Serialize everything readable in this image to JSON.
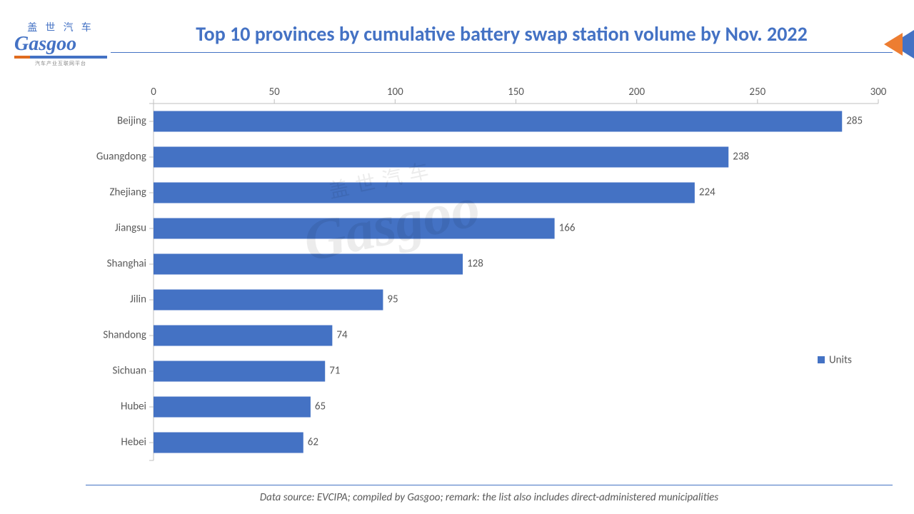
{
  "logo": {
    "cn": "盖 世 汽 车",
    "en": "Gasgoo",
    "sub": "汽车产业互联网平台"
  },
  "title": "Top 10 provinces by cumulative battery swap station volume by Nov. 2022",
  "footer": "Data source: EVCIPA; compiled by Gasgoo; remark: the list also includes direct-administered municipalities",
  "watermark": {
    "cn": "盖世汽车",
    "en": "Gasgoo"
  },
  "chart": {
    "type": "bar-horizontal",
    "categories": [
      "Beijing",
      "Guangdong",
      "Zhejiang",
      "Jiangsu",
      "Shanghai",
      "Jilin",
      "Shandong",
      "Sichuan",
      "Hubei",
      "Hebei"
    ],
    "values": [
      285,
      238,
      224,
      166,
      128,
      95,
      74,
      71,
      65,
      62
    ],
    "bar_color": "#4472c4",
    "axis_color": "#bfbfbf",
    "text_color": "#595959",
    "background_color": "#ffffff",
    "xlim": [
      0,
      300
    ],
    "xtick_step": 50,
    "xticks": [
      0,
      50,
      100,
      150,
      200,
      250,
      300
    ],
    "bar_width_ratio": 0.58,
    "legend": {
      "label": "Units",
      "color": "#4472c4",
      "position": "right-middle"
    },
    "label_fontsize": 15,
    "title_color": "#4472c4",
    "title_fontsize": 28,
    "corner_glyph_colors": [
      "#4472c4",
      "#ed7d31"
    ]
  }
}
